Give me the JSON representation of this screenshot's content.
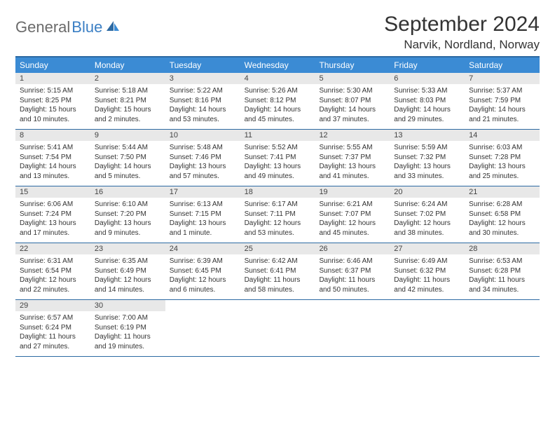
{
  "logo": {
    "text1": "General",
    "text2": "Blue"
  },
  "title": "September 2024",
  "location": "Narvik, Nordland, Norway",
  "colors": {
    "header_bg": "#3b8bd4",
    "divider": "#2d6aa3",
    "daynum_bg": "#e8e8e8",
    "text": "#333333",
    "logo_gray": "#6b6b6b",
    "logo_blue": "#3b7fc4"
  },
  "weekdays": [
    "Sunday",
    "Monday",
    "Tuesday",
    "Wednesday",
    "Thursday",
    "Friday",
    "Saturday"
  ],
  "weeks": [
    [
      {
        "n": "1",
        "sunrise": "5:15 AM",
        "sunset": "8:25 PM",
        "daylight": "15 hours and 10 minutes."
      },
      {
        "n": "2",
        "sunrise": "5:18 AM",
        "sunset": "8:21 PM",
        "daylight": "15 hours and 2 minutes."
      },
      {
        "n": "3",
        "sunrise": "5:22 AM",
        "sunset": "8:16 PM",
        "daylight": "14 hours and 53 minutes."
      },
      {
        "n": "4",
        "sunrise": "5:26 AM",
        "sunset": "8:12 PM",
        "daylight": "14 hours and 45 minutes."
      },
      {
        "n": "5",
        "sunrise": "5:30 AM",
        "sunset": "8:07 PM",
        "daylight": "14 hours and 37 minutes."
      },
      {
        "n": "6",
        "sunrise": "5:33 AM",
        "sunset": "8:03 PM",
        "daylight": "14 hours and 29 minutes."
      },
      {
        "n": "7",
        "sunrise": "5:37 AM",
        "sunset": "7:59 PM",
        "daylight": "14 hours and 21 minutes."
      }
    ],
    [
      {
        "n": "8",
        "sunrise": "5:41 AM",
        "sunset": "7:54 PM",
        "daylight": "14 hours and 13 minutes."
      },
      {
        "n": "9",
        "sunrise": "5:44 AM",
        "sunset": "7:50 PM",
        "daylight": "14 hours and 5 minutes."
      },
      {
        "n": "10",
        "sunrise": "5:48 AM",
        "sunset": "7:46 PM",
        "daylight": "13 hours and 57 minutes."
      },
      {
        "n": "11",
        "sunrise": "5:52 AM",
        "sunset": "7:41 PM",
        "daylight": "13 hours and 49 minutes."
      },
      {
        "n": "12",
        "sunrise": "5:55 AM",
        "sunset": "7:37 PM",
        "daylight": "13 hours and 41 minutes."
      },
      {
        "n": "13",
        "sunrise": "5:59 AM",
        "sunset": "7:32 PM",
        "daylight": "13 hours and 33 minutes."
      },
      {
        "n": "14",
        "sunrise": "6:03 AM",
        "sunset": "7:28 PM",
        "daylight": "13 hours and 25 minutes."
      }
    ],
    [
      {
        "n": "15",
        "sunrise": "6:06 AM",
        "sunset": "7:24 PM",
        "daylight": "13 hours and 17 minutes."
      },
      {
        "n": "16",
        "sunrise": "6:10 AM",
        "sunset": "7:20 PM",
        "daylight": "13 hours and 9 minutes."
      },
      {
        "n": "17",
        "sunrise": "6:13 AM",
        "sunset": "7:15 PM",
        "daylight": "13 hours and 1 minute."
      },
      {
        "n": "18",
        "sunrise": "6:17 AM",
        "sunset": "7:11 PM",
        "daylight": "12 hours and 53 minutes."
      },
      {
        "n": "19",
        "sunrise": "6:21 AM",
        "sunset": "7:07 PM",
        "daylight": "12 hours and 45 minutes."
      },
      {
        "n": "20",
        "sunrise": "6:24 AM",
        "sunset": "7:02 PM",
        "daylight": "12 hours and 38 minutes."
      },
      {
        "n": "21",
        "sunrise": "6:28 AM",
        "sunset": "6:58 PM",
        "daylight": "12 hours and 30 minutes."
      }
    ],
    [
      {
        "n": "22",
        "sunrise": "6:31 AM",
        "sunset": "6:54 PM",
        "daylight": "12 hours and 22 minutes."
      },
      {
        "n": "23",
        "sunrise": "6:35 AM",
        "sunset": "6:49 PM",
        "daylight": "12 hours and 14 minutes."
      },
      {
        "n": "24",
        "sunrise": "6:39 AM",
        "sunset": "6:45 PM",
        "daylight": "12 hours and 6 minutes."
      },
      {
        "n": "25",
        "sunrise": "6:42 AM",
        "sunset": "6:41 PM",
        "daylight": "11 hours and 58 minutes."
      },
      {
        "n": "26",
        "sunrise": "6:46 AM",
        "sunset": "6:37 PM",
        "daylight": "11 hours and 50 minutes."
      },
      {
        "n": "27",
        "sunrise": "6:49 AM",
        "sunset": "6:32 PM",
        "daylight": "11 hours and 42 minutes."
      },
      {
        "n": "28",
        "sunrise": "6:53 AM",
        "sunset": "6:28 PM",
        "daylight": "11 hours and 34 minutes."
      }
    ],
    [
      {
        "n": "29",
        "sunrise": "6:57 AM",
        "sunset": "6:24 PM",
        "daylight": "11 hours and 27 minutes."
      },
      {
        "n": "30",
        "sunrise": "7:00 AM",
        "sunset": "6:19 PM",
        "daylight": "11 hours and 19 minutes."
      },
      null,
      null,
      null,
      null,
      null
    ]
  ]
}
